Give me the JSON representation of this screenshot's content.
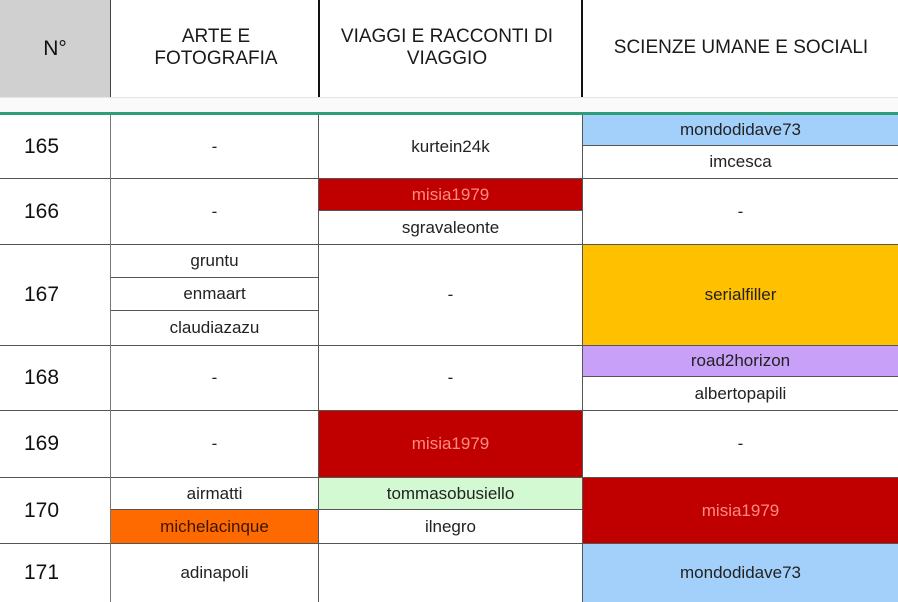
{
  "colors": {
    "header_bg": "#d0d0d0",
    "separator": "#2e9e7a",
    "light_blue": "#a3d0fb",
    "dark_red": "#c00000",
    "orange_yellow": "#ffc000",
    "lavender": "#c9a0f7",
    "light_green": "#d2f9d2",
    "orange": "#ff6a00"
  },
  "header": {
    "num": "N°",
    "col1": "ARTE E FOTOGRAFIA",
    "col2": "VIAGGI E RACCONTI DI VIAGGIO",
    "col3": "SCIENZE UMANE E SOCIALI"
  },
  "rows": [
    {
      "num": "165",
      "col1": [
        "-"
      ],
      "col2": [
        "kurtein24k"
      ],
      "col3": [
        "mondodidave73",
        "imcesca"
      ]
    },
    {
      "num": "166",
      "col1": [
        "-"
      ],
      "col2": [
        "misia1979",
        "sgravaleonte"
      ],
      "col3": [
        "-"
      ]
    },
    {
      "num": "167",
      "col1": [
        "gruntu",
        "enmaart",
        "claudiazazu"
      ],
      "col2": [
        "-"
      ],
      "col3": [
        "serialfiller"
      ]
    },
    {
      "num": "168",
      "col1": [
        "-"
      ],
      "col2": [
        "-"
      ],
      "col3": [
        "road2horizon",
        "albertopapili"
      ]
    },
    {
      "num": "169",
      "col1": [
        "-"
      ],
      "col2": [
        "misia1979"
      ],
      "col3": [
        "-"
      ]
    },
    {
      "num": "170",
      "col1": [
        "airmatti",
        "michelacinque"
      ],
      "col2": [
        "tommasobusiello",
        "ilnegro"
      ],
      "col3": [
        "misia1979"
      ]
    },
    {
      "num": "171",
      "col1": [
        "adinapoli"
      ],
      "col2": [
        ""
      ],
      "col3": [
        "mondodidave73"
      ]
    }
  ]
}
